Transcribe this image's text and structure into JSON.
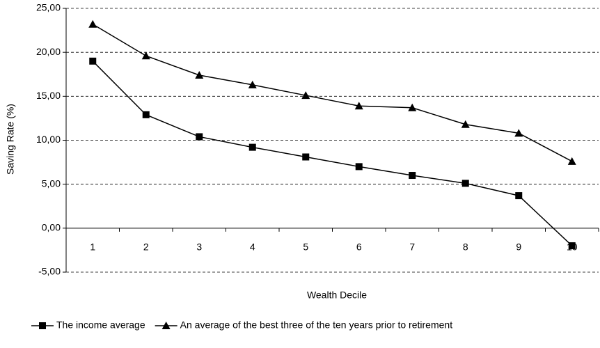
{
  "chart_data": {
    "type": "line",
    "x_label": "Wealth Decile",
    "y_label": "Saving Rate (%)",
    "categories": [
      "1",
      "2",
      "3",
      "4",
      "5",
      "6",
      "7",
      "8",
      "9",
      "10"
    ],
    "series": [
      {
        "name": "The income average",
        "color": "#000000",
        "marker": "square",
        "values": [
          19.0,
          12.9,
          10.4,
          9.2,
          8.1,
          7.0,
          6.0,
          5.1,
          3.7,
          -2.0
        ]
      },
      {
        "name": "An average of the best three of the ten years prior to retirement",
        "color": "#000000",
        "marker": "triangle",
        "values": [
          23.2,
          19.6,
          17.4,
          16.3,
          15.1,
          13.9,
          13.7,
          11.8,
          10.8,
          7.6
        ]
      }
    ],
    "ylim": [
      -5,
      25
    ],
    "yticks": [
      {
        "value": -5,
        "label": "-5,00"
      },
      {
        "value": 0,
        "label": "0,00"
      },
      {
        "value": 5,
        "label": "5,00"
      },
      {
        "value": 10,
        "label": "10,00"
      },
      {
        "value": 15,
        "label": "15,00"
      },
      {
        "value": 20,
        "label": "20,00"
      },
      {
        "value": 25,
        "label": "25,00"
      }
    ],
    "grid": true,
    "legend": "bottom"
  }
}
